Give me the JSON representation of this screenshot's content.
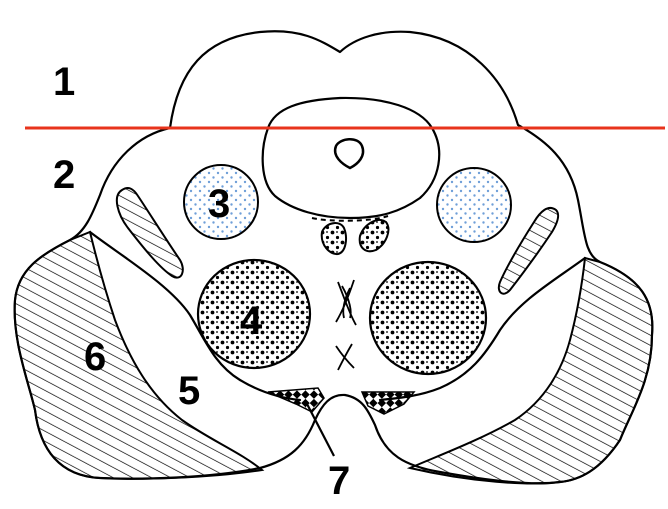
{
  "figure": {
    "labels": [
      {
        "id": "1",
        "text": "1"
      },
      {
        "id": "2",
        "text": "2"
      },
      {
        "id": "3",
        "text": "3"
      },
      {
        "id": "4",
        "text": "4"
      },
      {
        "id": "5",
        "text": "5"
      },
      {
        "id": "6",
        "text": "6"
      },
      {
        "id": "7",
        "text": "7"
      }
    ],
    "colors": {
      "cut_line": "#e8341c",
      "outline": "#000000",
      "stipple_blue": "#6f9fd8",
      "background": "#ffffff"
    }
  }
}
